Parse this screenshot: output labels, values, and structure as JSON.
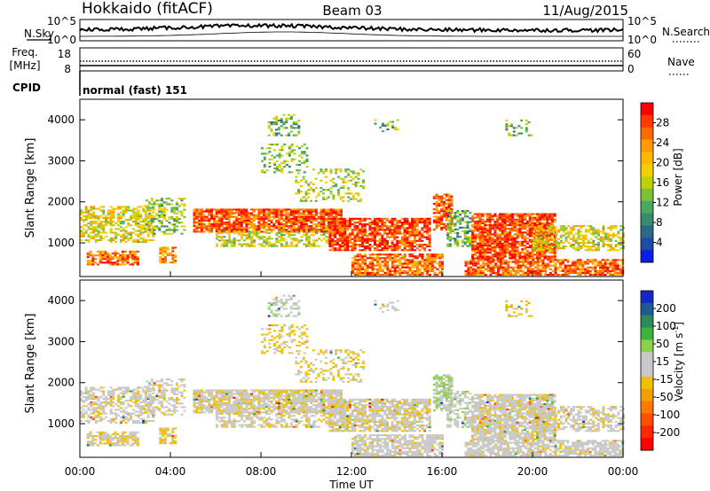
{
  "header": {
    "station": "Hokkaido (fitACF)",
    "beam": "Beam 03",
    "date": "11/Aug/2015"
  },
  "noise_panel": {
    "left_label": "N.Sky",
    "right_label": "N.Search",
    "left_ticks": [
      "10^5",
      "10^0"
    ],
    "right_ticks": [
      "10^5",
      "10^0"
    ]
  },
  "freq_panel": {
    "left_label_1": "Freq.",
    "left_label_2": "[MHz]",
    "right_label": "Nave",
    "left_ticks": [
      "18",
      "8"
    ],
    "right_ticks": [
      "60",
      "0"
    ]
  },
  "cpid": {
    "label": "CPID",
    "mode": "normal (fast) 151"
  },
  "range_axis": {
    "label": "Slant Range [km]",
    "ticks": [
      "4000",
      "3000",
      "2000",
      "1000"
    ]
  },
  "time_axis": {
    "label": "Time UT",
    "ticks": [
      "00:00",
      "04:00",
      "08:00",
      "12:00",
      "16:00",
      "20:00",
      "00:00"
    ]
  },
  "power_colorbar": {
    "label": "Power [dB]",
    "ticks": [
      "28",
      "24",
      "20",
      "16",
      "12",
      "8",
      "4"
    ],
    "colors": [
      "#ff0000",
      "#ff3a00",
      "#ff6a00",
      "#ff9a00",
      "#ffb800",
      "#f0d000",
      "#c0d000",
      "#7ac03c",
      "#4aa860",
      "#3a8a6e",
      "#2a6a86",
      "#1e4aa8",
      "#0a1ee6"
    ]
  },
  "velocity_colorbar": {
    "label": "Velocity [m s",
    "label_exp": "-1",
    "label_close": "]",
    "ticks": [
      "200",
      "100",
      "50",
      "15",
      "-15",
      "-50",
      "-100",
      "-200"
    ],
    "colors": [
      "#1428c8",
      "#1e5a96",
      "#2a8a5a",
      "#3cb43c",
      "#8cd050",
      "#c8c8c8",
      "#c8c8c8",
      "#f0c000",
      "#f0a000",
      "#ff7800",
      "#ff5000",
      "#ff2800",
      "#ff0000"
    ]
  },
  "chart_data": {
    "type": "heatmap",
    "x_unit": "hours UT",
    "xlim": [
      0,
      24
    ],
    "ylim": [
      180,
      4500
    ],
    "power_clim": [
      0,
      32
    ],
    "velocity_clim": [
      -250,
      250
    ],
    "echo_regions": [
      {
        "t0": 0.0,
        "t1": 3.2,
        "r0": 1000,
        "r1": 1900,
        "p": 18,
        "v": 0,
        "d": 0.6
      },
      {
        "t0": 0.3,
        "t1": 2.6,
        "r0": 450,
        "r1": 800,
        "p": 26,
        "v": -10,
        "d": 0.7
      },
      {
        "t0": 2.8,
        "t1": 4.6,
        "r0": 1200,
        "r1": 2100,
        "p": 14,
        "v": 0,
        "d": 0.4
      },
      {
        "t0": 3.5,
        "t1": 4.2,
        "r0": 500,
        "r1": 900,
        "p": 24,
        "v": -20,
        "d": 0.6
      },
      {
        "t0": 5.0,
        "t1": 11.5,
        "r0": 1250,
        "r1": 1800,
        "p": 27,
        "v": -5,
        "d": 0.85
      },
      {
        "t0": 6.0,
        "t1": 11.0,
        "r0": 900,
        "r1": 1300,
        "p": 17,
        "v": 0,
        "d": 0.5
      },
      {
        "t0": 8.0,
        "t1": 10.0,
        "r0": 2700,
        "r1": 3400,
        "p": 14,
        "v": -30,
        "d": 0.3
      },
      {
        "t0": 8.3,
        "t1": 9.7,
        "r0": 3600,
        "r1": 4100,
        "p": 12,
        "v": 40,
        "d": 0.35
      },
      {
        "t0": 11.0,
        "t1": 15.5,
        "r0": 800,
        "r1": 1600,
        "p": 28,
        "v": -5,
        "d": 0.8
      },
      {
        "t0": 12.0,
        "t1": 16.0,
        "r0": 200,
        "r1": 700,
        "p": 26,
        "v": 5,
        "d": 0.7
      },
      {
        "t0": 15.6,
        "t1": 16.4,
        "r0": 1300,
        "r1": 2200,
        "p": 27,
        "v": 60,
        "d": 0.7
      },
      {
        "t0": 16.2,
        "t1": 17.2,
        "r0": 900,
        "r1": 1800,
        "p": 12,
        "v": 40,
        "d": 0.5
      },
      {
        "t0": 17.3,
        "t1": 21.0,
        "r0": 600,
        "r1": 1700,
        "p": 28,
        "v": 0,
        "d": 0.85
      },
      {
        "t0": 17.0,
        "t1": 24.0,
        "r0": 200,
        "r1": 600,
        "p": 26,
        "v": 5,
        "d": 0.75
      },
      {
        "t0": 20.0,
        "t1": 24.0,
        "r0": 800,
        "r1": 1400,
        "p": 18,
        "v": 0,
        "d": 0.55
      },
      {
        "t0": 18.8,
        "t1": 20.0,
        "r0": 3600,
        "r1": 4000,
        "p": 12,
        "v": -40,
        "d": 0.3
      },
      {
        "t0": 13.0,
        "t1": 14.0,
        "r0": 3700,
        "r1": 4000,
        "p": 12,
        "v": 20,
        "d": 0.25
      },
      {
        "t0": 9.5,
        "t1": 12.5,
        "r0": 2000,
        "r1": 2800,
        "p": 16,
        "v": -20,
        "d": 0.3
      }
    ]
  }
}
